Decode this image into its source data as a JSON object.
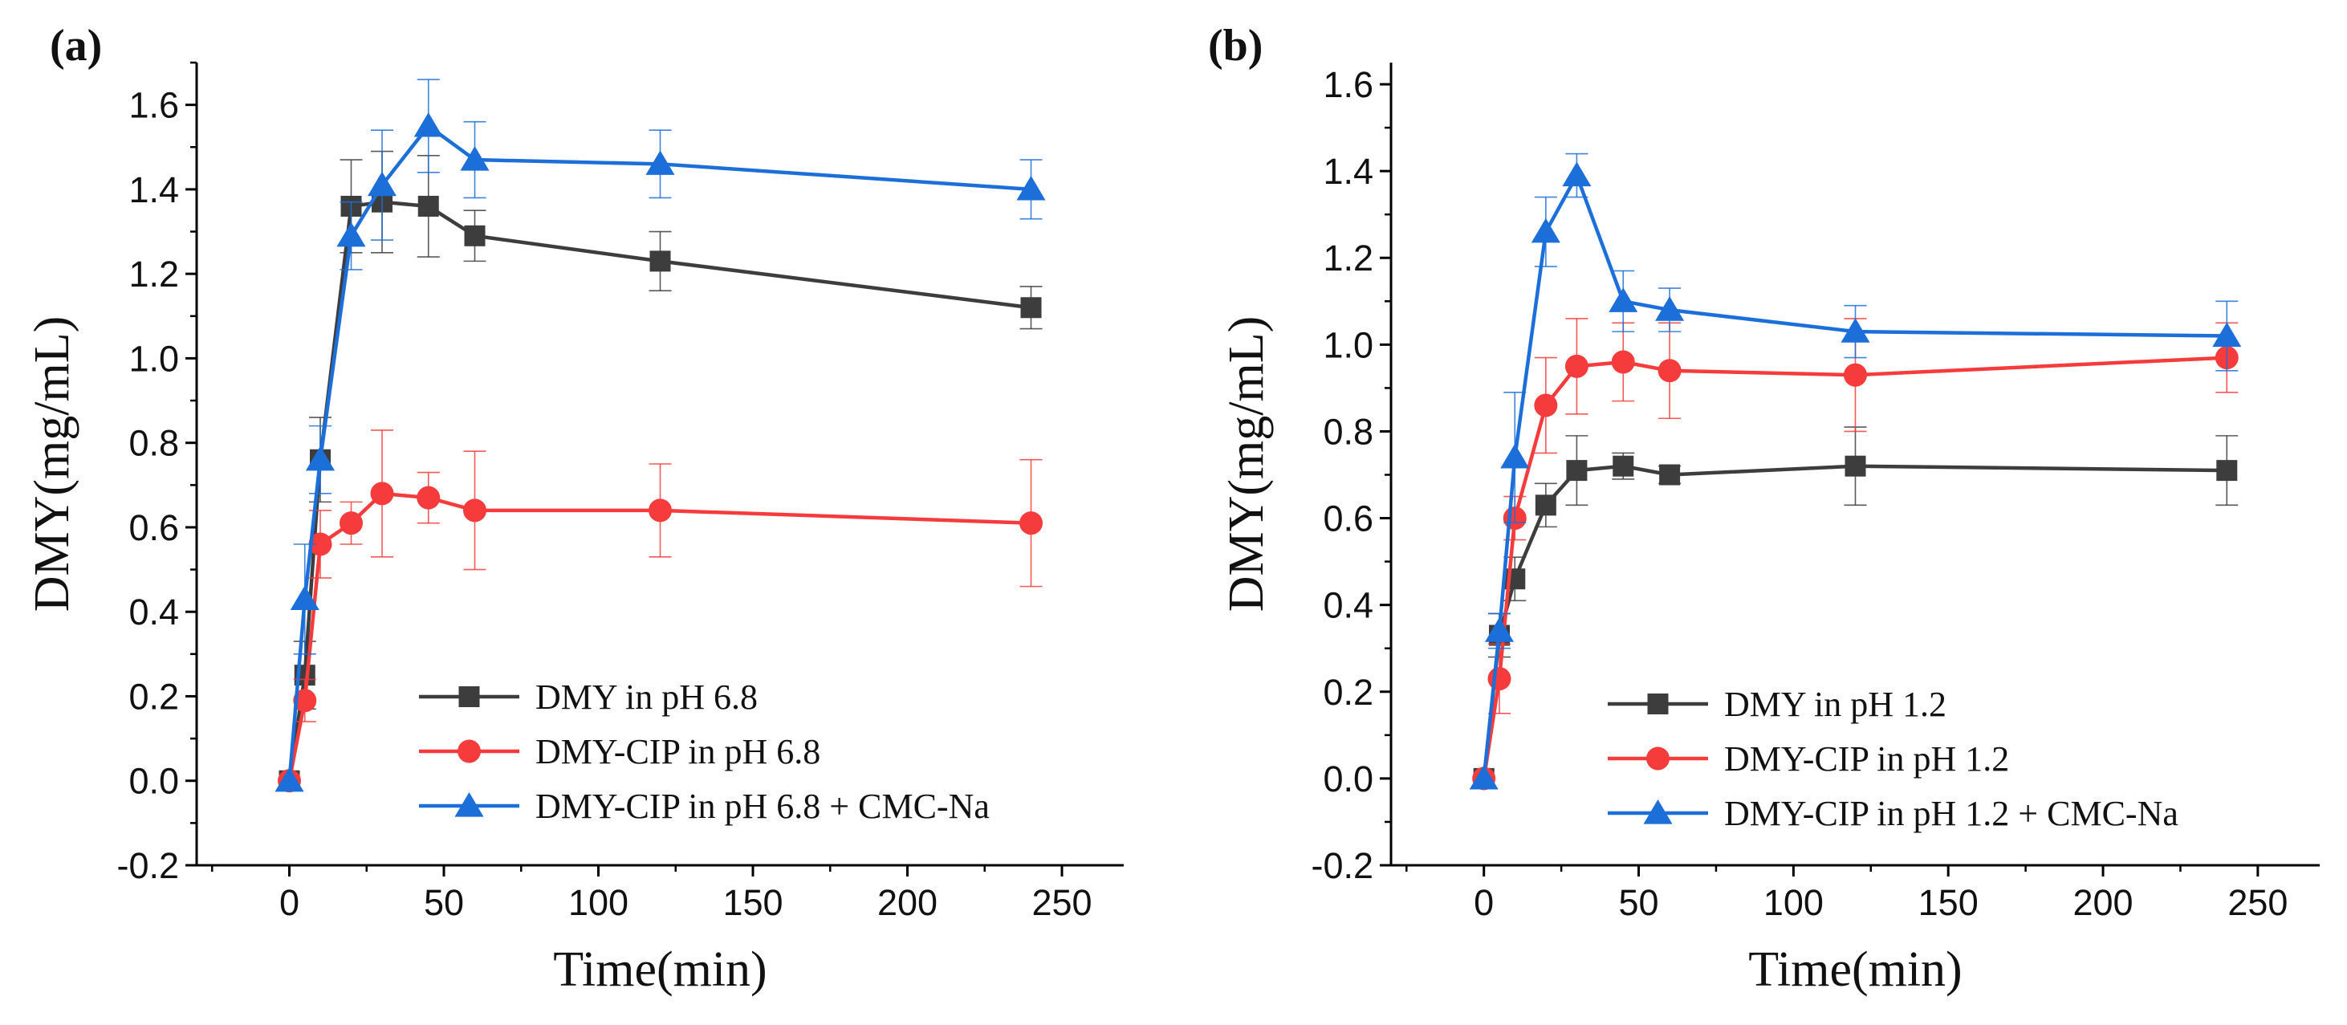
{
  "chart_data": [
    {
      "type": "line",
      "panel_label": "(a)",
      "xlabel": "Time(min)",
      "ylabel": "DMY(mg/mL)",
      "xlim": [
        -30,
        270
      ],
      "ylim": [
        -0.2,
        1.7
      ],
      "x_ticks": [
        0,
        50,
        100,
        150,
        200,
        250
      ],
      "x_tick_labels": [
        "0",
        "50",
        "100",
        "150",
        "200",
        "250"
      ],
      "y_ticks": [
        -0.2,
        0,
        0.2,
        0.4,
        0.6,
        0.8,
        1.0,
        1.2,
        1.4,
        1.6
      ],
      "y_tick_labels": [
        "-0.2",
        "0.0",
        "0.2",
        "0.4",
        "0.6",
        "0.8",
        "1.0",
        "1.2",
        "1.4",
        "1.6"
      ],
      "legend_position": "bottom-right",
      "series": [
        {
          "name": "DMY in pH 6.8",
          "color": "#3d3d3d",
          "marker": "square",
          "x": [
            0,
            5,
            10,
            20,
            30,
            45,
            60,
            120,
            240
          ],
          "values": [
            0,
            0.25,
            0.76,
            1.36,
            1.37,
            1.36,
            1.29,
            1.23,
            1.12
          ],
          "errors": [
            0,
            0.08,
            0.1,
            0.11,
            0.12,
            0.12,
            0.06,
            0.07,
            0.05
          ]
        },
        {
          "name": "DMY-CIP in pH 6.8",
          "color": "#f53b3b",
          "marker": "circle",
          "x": [
            0,
            5,
            10,
            20,
            30,
            45,
            60,
            120,
            240
          ],
          "values": [
            0,
            0.19,
            0.56,
            0.61,
            0.68,
            0.67,
            0.64,
            0.64,
            0.61
          ],
          "errors": [
            0,
            0.05,
            0.08,
            0.05,
            0.15,
            0.06,
            0.14,
            0.11,
            0.15
          ]
        },
        {
          "name": "DMY-CIP in pH 6.8 + CMC-Na",
          "color": "#1c6fd9",
          "marker": "triangle",
          "x": [
            0,
            5,
            10,
            20,
            30,
            45,
            60,
            120,
            240
          ],
          "values": [
            0,
            0.43,
            0.76,
            1.29,
            1.41,
            1.55,
            1.47,
            1.46,
            1.4
          ],
          "errors": [
            0,
            0.13,
            0.08,
            0.08,
            0.13,
            0.11,
            0.09,
            0.08,
            0.07
          ]
        }
      ]
    },
    {
      "type": "line",
      "panel_label": "(b)",
      "xlabel": "Time(min)",
      "ylabel": "DMY(mg/mL)",
      "xlim": [
        -30,
        270
      ],
      "ylim": [
        -0.2,
        1.65
      ],
      "x_ticks": [
        0,
        50,
        100,
        150,
        200,
        250
      ],
      "x_tick_labels": [
        "0",
        "50",
        "100",
        "150",
        "200",
        "250"
      ],
      "y_ticks": [
        -0.2,
        0,
        0.2,
        0.4,
        0.6,
        0.8,
        1.0,
        1.2,
        1.4,
        1.6
      ],
      "y_tick_labels": [
        "-0.2",
        "0.0",
        "0.2",
        "0.4",
        "0.6",
        "0.8",
        "1.0",
        "1.2",
        "1.4",
        "1.6"
      ],
      "legend_position": "bottom-right",
      "series": [
        {
          "name": "DMY in pH 1.2",
          "color": "#3d3d3d",
          "marker": "square",
          "x": [
            0,
            5,
            10,
            20,
            30,
            45,
            60,
            120,
            240
          ],
          "values": [
            0,
            0.33,
            0.46,
            0.63,
            0.71,
            0.72,
            0.7,
            0.72,
            0.71
          ],
          "errors": [
            0,
            0.05,
            0.05,
            0.05,
            0.08,
            0.03,
            0.02,
            0.09,
            0.08
          ]
        },
        {
          "name": "DMY-CIP in pH 1.2",
          "color": "#f53b3b",
          "marker": "circle",
          "x": [
            0,
            5,
            10,
            20,
            30,
            45,
            60,
            120,
            240
          ],
          "values": [
            0,
            0.23,
            0.6,
            0.86,
            0.95,
            0.96,
            0.94,
            0.93,
            0.97
          ],
          "errors": [
            0,
            0.08,
            0.05,
            0.11,
            0.11,
            0.09,
            0.11,
            0.13,
            0.08
          ]
        },
        {
          "name": "DMY-CIP in pH 1.2 + CMC-Na",
          "color": "#1c6fd9",
          "marker": "triangle",
          "x": [
            0,
            5,
            10,
            20,
            30,
            45,
            60,
            120,
            240
          ],
          "values": [
            0,
            0.34,
            0.74,
            1.26,
            1.39,
            1.1,
            1.08,
            1.03,
            1.02
          ],
          "errors": [
            0,
            0.04,
            0.15,
            0.08,
            0.05,
            0.07,
            0.05,
            0.06,
            0.08
          ]
        }
      ]
    }
  ]
}
